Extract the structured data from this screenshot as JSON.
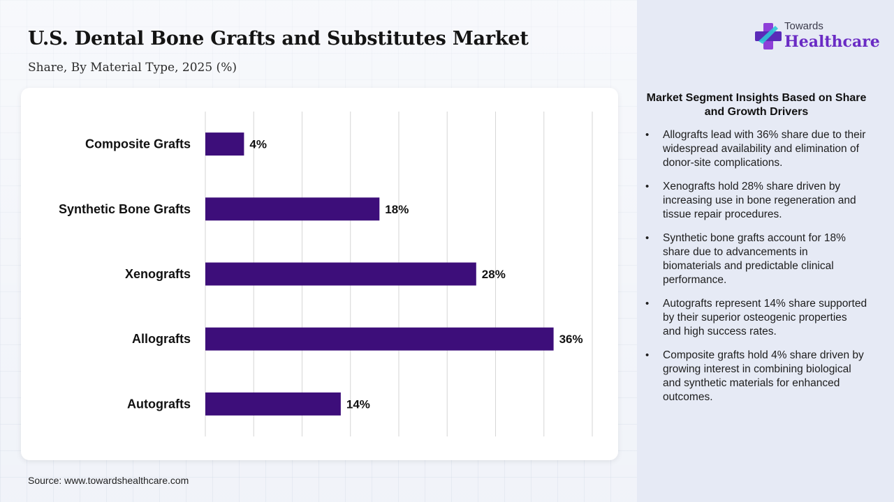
{
  "header": {
    "title": "U.S. Dental Bone Grafts and Substitutes Market",
    "subtitle": "Share, By Material Type, 2025 (%)"
  },
  "logo": {
    "line1": "Towards",
    "line2": "Healthcare"
  },
  "chart_data": {
    "type": "bar",
    "orientation": "horizontal",
    "categories": [
      "Composite Grafts",
      "Synthetic Bone Grafts",
      "Xenografts",
      "Allografts",
      "Autografts"
    ],
    "values": [
      4,
      18,
      28,
      36,
      14
    ],
    "value_labels": [
      "4%",
      "18%",
      "28%",
      "36%",
      "14%"
    ],
    "xlim": [
      0,
      40
    ],
    "grid": true,
    "bar_color": "#3d0e7a"
  },
  "insights": {
    "title": "Market Segment Insights Based on Share and Growth Drivers",
    "items": [
      "Allografts lead with 36% share due to their widespread availability and elimination of donor-site complications.",
      "Xenografts hold 28% share driven by increasing use in bone regeneration and tissue repair procedures.",
      "Synthetic bone grafts account for 18% share due to advancements in biomaterials and predictable clinical performance.",
      "Autografts represent 14% share supported by their superior osteogenic properties and high success rates.",
      "Composite grafts hold 4% share driven by growing interest in combining biological and synthetic materials for enhanced outcomes."
    ]
  },
  "footer": {
    "source": "Source: www.towardshealthcare.com"
  },
  "colors": {
    "accent": "#6a2bc4",
    "bar": "#3d0e7a"
  }
}
